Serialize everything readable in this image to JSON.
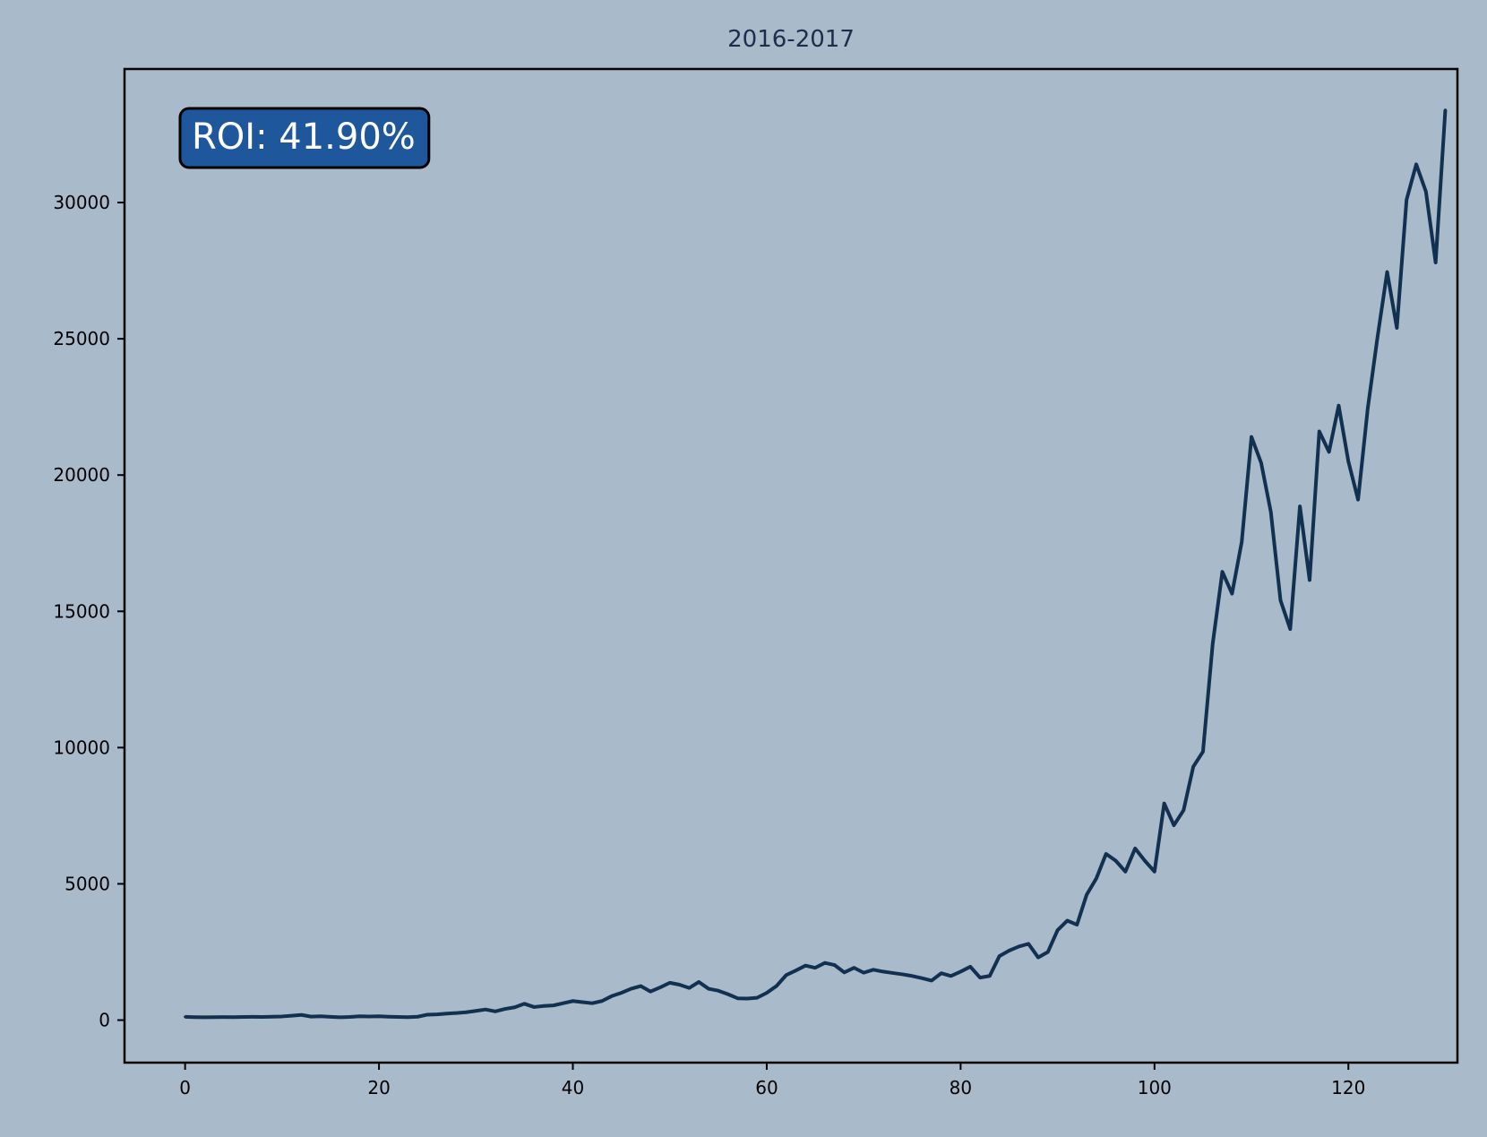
{
  "colors": {
    "background": "#a9bacb",
    "line": "#12304f",
    "title": "#1f2d4d",
    "annotation_fill": "#1f579d",
    "annotation_text": "#ffffff",
    "axis": "#000000"
  },
  "chart_data": {
    "type": "line",
    "title": "2016-2017",
    "xlabel": "",
    "ylabel": "",
    "xlim": [
      -6.25,
      131.25
    ],
    "ylim": [
      -1560,
      34900
    ],
    "grid": false,
    "x_ticks": [
      0,
      20,
      40,
      60,
      80,
      100,
      120
    ],
    "y_ticks": [
      0,
      5000,
      10000,
      15000,
      20000,
      25000,
      30000
    ],
    "annotation": "ROI: 41.90%",
    "series": [
      {
        "values": [
          120,
          110,
          105,
          110,
          112,
          108,
          115,
          120,
          118,
          125,
          135,
          160,
          190,
          130,
          140,
          120,
          105,
          115,
          140,
          135,
          140,
          125,
          115,
          110,
          125,
          200,
          210,
          240,
          260,
          290,
          340,
          390,
          320,
          410,
          470,
          600,
          480,
          520,
          540,
          620,
          700,
          660,
          620,
          700,
          880,
          1000,
          1150,
          1250,
          1050,
          1200,
          1370,
          1300,
          1180,
          1400,
          1150,
          1080,
          950,
          800,
          790,
          820,
          1000,
          1250,
          1650,
          1820,
          2000,
          1920,
          2100,
          2020,
          1750,
          1920,
          1740,
          1850,
          1780,
          1730,
          1680,
          1620,
          1540,
          1450,
          1720,
          1620,
          1780,
          1960,
          1560,
          1620,
          2350,
          2550,
          2700,
          2800,
          2300,
          2500,
          3300,
          3650,
          3500,
          4600,
          5200,
          6100,
          5850,
          5450,
          6300,
          5850,
          5450,
          7950,
          7150,
          7700,
          9300,
          9850,
          13800,
          16450,
          15650,
          17550,
          21400,
          20450,
          18650,
          15400,
          14350,
          18850,
          16150,
          21600,
          20850,
          22550,
          20500,
          19100,
          22450,
          25050,
          27450,
          25400,
          30100,
          31400,
          30400,
          27800,
          33400
        ]
      }
    ]
  }
}
